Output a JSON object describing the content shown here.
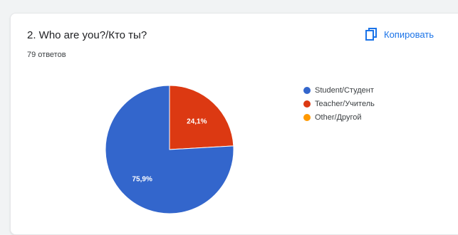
{
  "question": {
    "title": "2. Who are you?/Кто ты?",
    "responses": "79 ответов"
  },
  "toolbar": {
    "copy_label": "Копировать",
    "copy_icon": "copy-icon"
  },
  "chart_data": {
    "type": "pie",
    "categories": [
      "Student/Студент",
      "Teacher/Учитель",
      "Other/Другой"
    ],
    "values": [
      75.9,
      24.1,
      0
    ],
    "labels": [
      "75,9%",
      "24,1%",
      ""
    ],
    "colors": [
      "#3366cc",
      "#dc3912",
      "#ff9900"
    ],
    "legend": "right"
  }
}
